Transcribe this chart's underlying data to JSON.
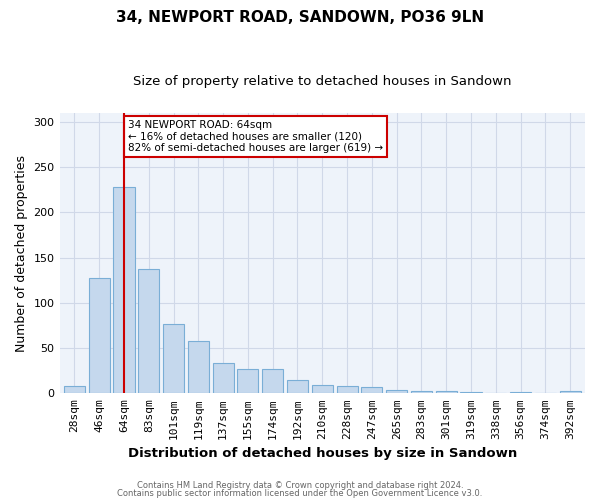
{
  "title1": "34, NEWPORT ROAD, SANDOWN, PO36 9LN",
  "title2": "Size of property relative to detached houses in Sandown",
  "xlabel": "Distribution of detached houses by size in Sandown",
  "ylabel": "Number of detached properties",
  "categories": [
    "28sqm",
    "46sqm",
    "64sqm",
    "83sqm",
    "101sqm",
    "119sqm",
    "137sqm",
    "155sqm",
    "174sqm",
    "192sqm",
    "210sqm",
    "228sqm",
    "247sqm",
    "265sqm",
    "283sqm",
    "301sqm",
    "319sqm",
    "338sqm",
    "356sqm",
    "374sqm",
    "392sqm"
  ],
  "values": [
    8,
    127,
    228,
    137,
    77,
    58,
    33,
    27,
    27,
    15,
    9,
    8,
    7,
    4,
    3,
    3,
    1,
    0,
    1,
    0,
    3
  ],
  "bar_color": "#c5d8ed",
  "bar_edgecolor": "#7aaed6",
  "highlight_index": 2,
  "red_line_color": "#cc0000",
  "annotation_text": "34 NEWPORT ROAD: 64sqm\n← 16% of detached houses are smaller (120)\n82% of semi-detached houses are larger (619) →",
  "annotation_box_edgecolor": "#cc0000",
  "annotation_box_facecolor": "#ffffff",
  "footer1": "Contains HM Land Registry data © Crown copyright and database right 2024.",
  "footer2": "Contains public sector information licensed under the Open Government Licence v3.0.",
  "ylim": [
    0,
    310
  ],
  "yticks": [
    0,
    50,
    100,
    150,
    200,
    250,
    300
  ],
  "bg_color": "#ffffff",
  "grid_color": "#d0d8e8",
  "title1_fontsize": 11,
  "title2_fontsize": 9.5,
  "tick_fontsize": 8,
  "ylabel_fontsize": 9,
  "xlabel_fontsize": 9.5,
  "footer_fontsize": 6.0
}
